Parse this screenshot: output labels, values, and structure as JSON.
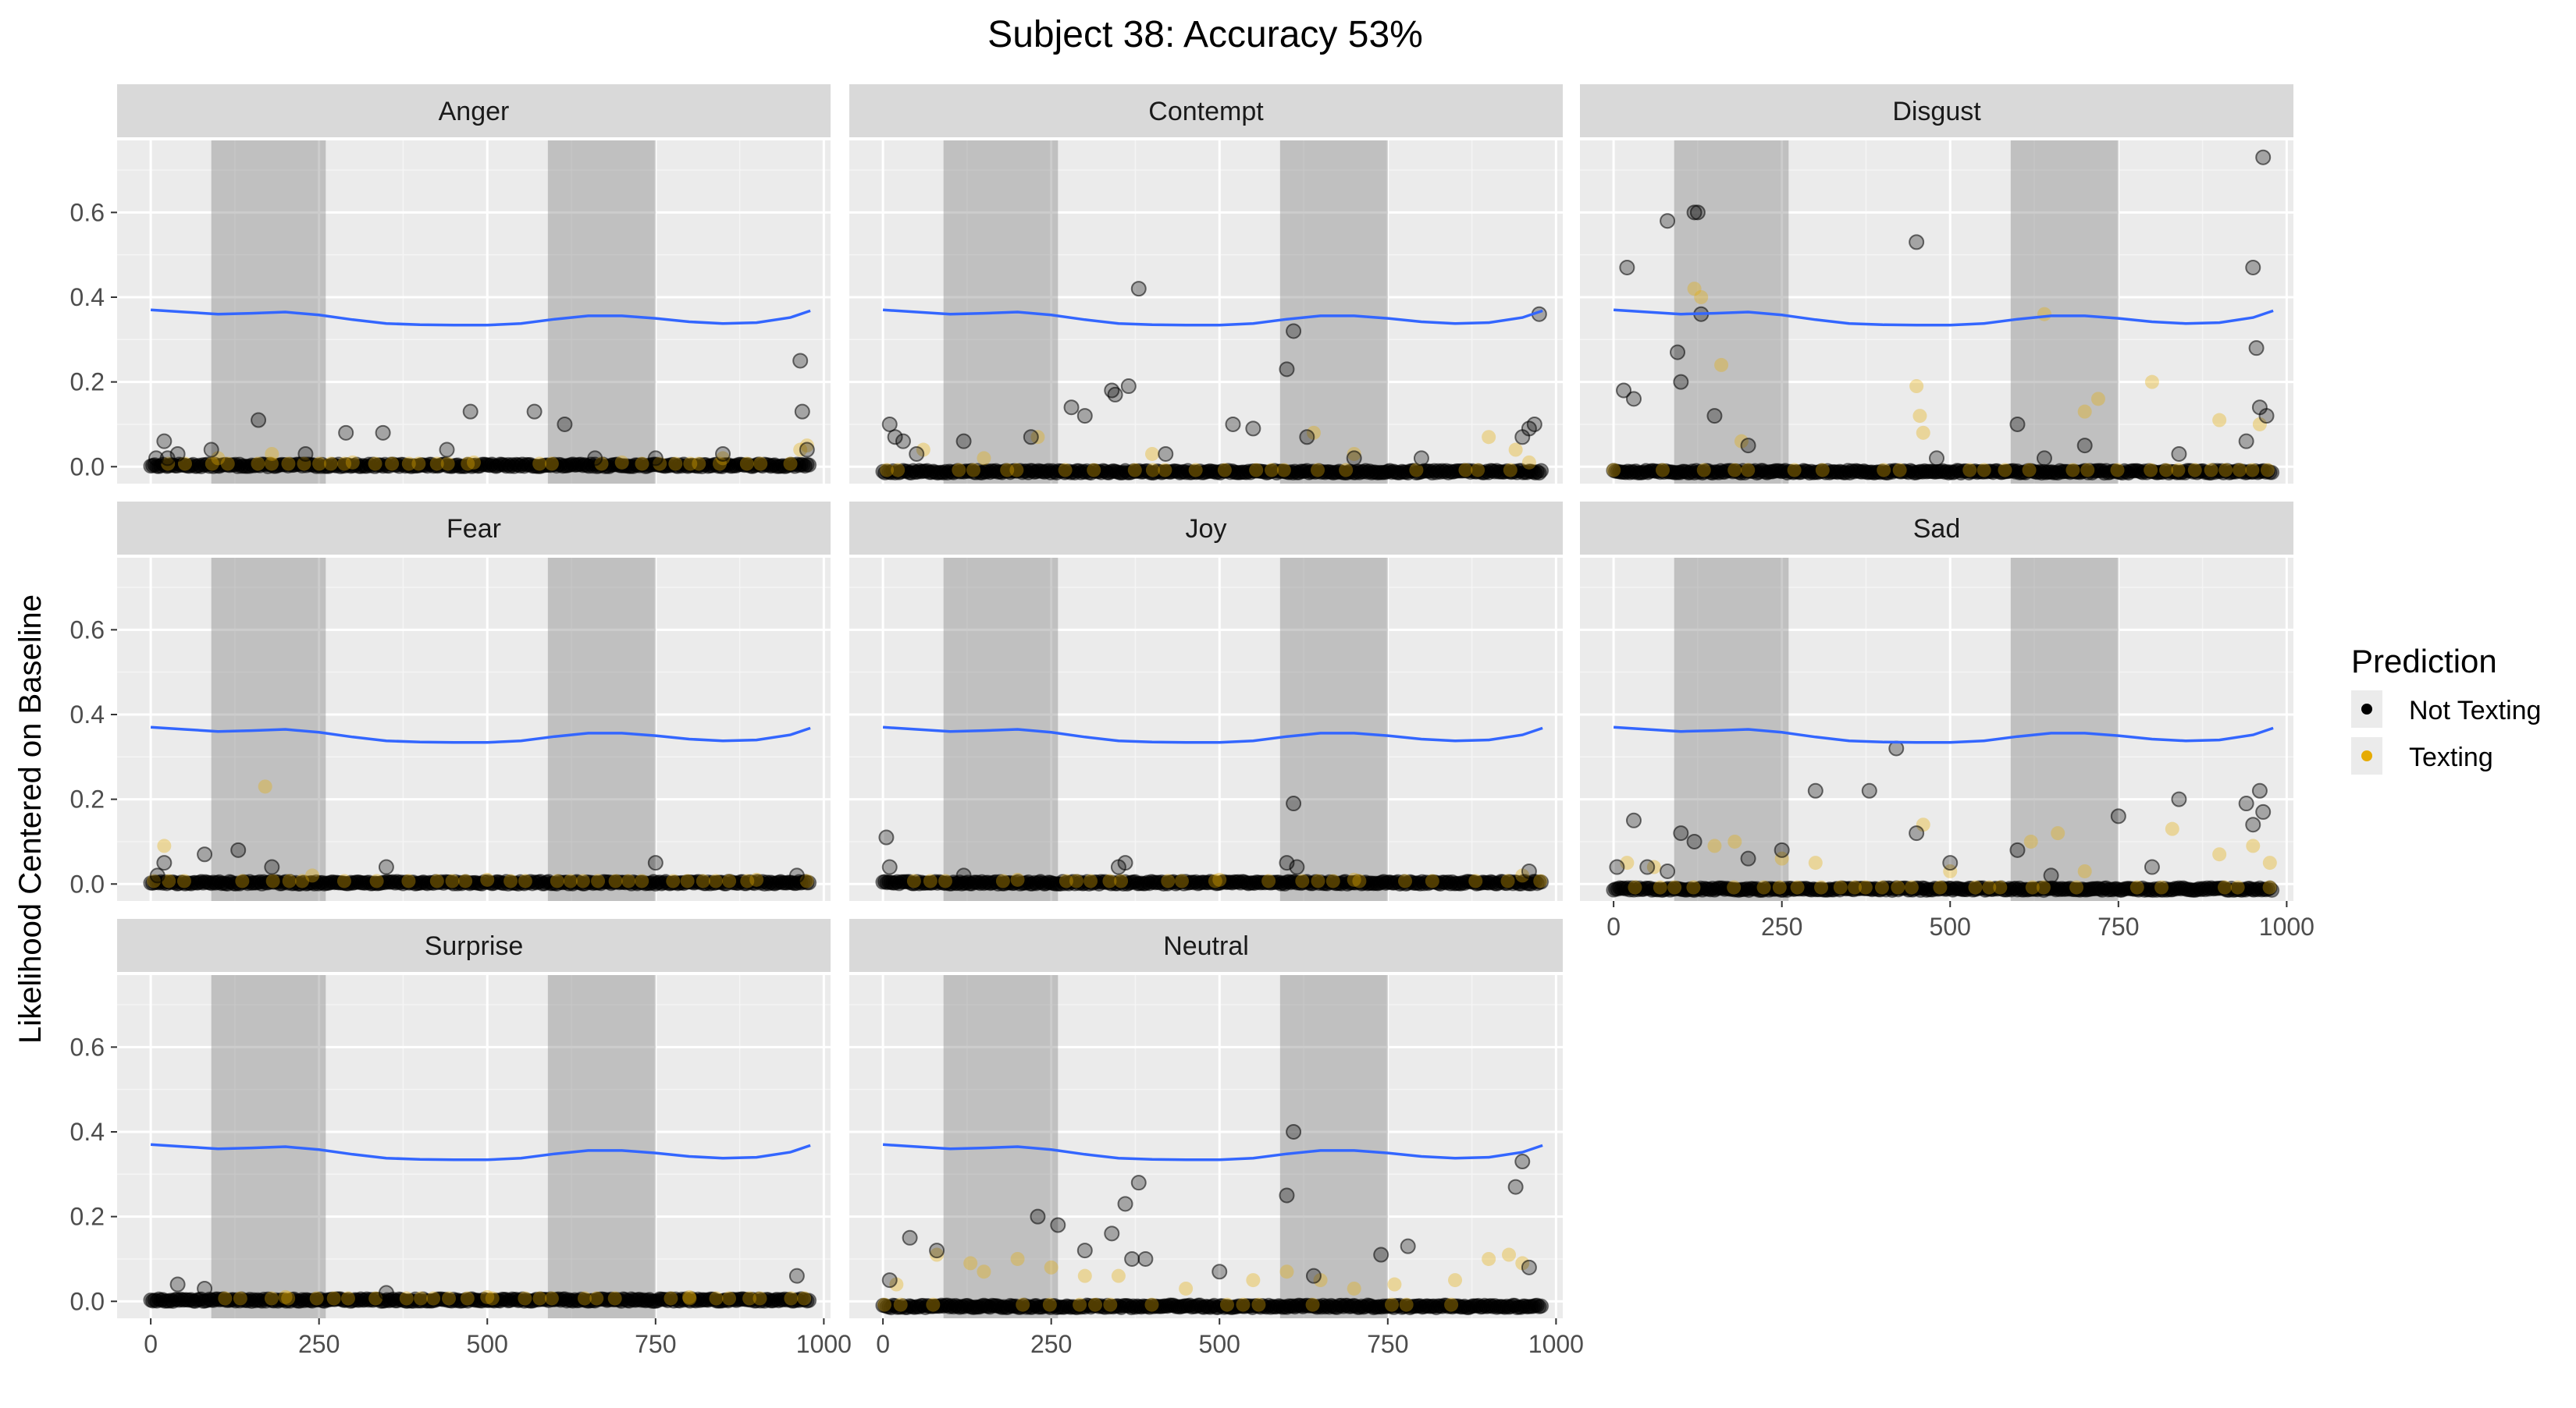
{
  "chart_data": {
    "type": "scatter",
    "title": "Subject 38: Accuracy 53%",
    "ylabel": "Likelihood Centered on Baseline",
    "xlabel": "",
    "xlim": [
      -50,
      1010
    ],
    "ylim": [
      -0.04,
      0.77
    ],
    "x_ticks": [
      0,
      250,
      500,
      750,
      1000
    ],
    "y_ticks": [
      0.0,
      0.2,
      0.4,
      0.6
    ],
    "y_tick_labels": [
      "0.0",
      "0.2",
      "0.4",
      "0.6"
    ],
    "shaded_intervals": [
      [
        90,
        260
      ],
      [
        590,
        750
      ]
    ],
    "grid": true,
    "legend": {
      "title": "Prediction",
      "placement": "right",
      "entries": [
        {
          "label": "Not Texting",
          "color": "#000000"
        },
        {
          "label": "Texting",
          "color": "#E6AB02"
        }
      ]
    },
    "trend_line": {
      "color": "#3366FF",
      "x": [
        0,
        50,
        100,
        150,
        200,
        250,
        300,
        350,
        400,
        450,
        500,
        550,
        600,
        650,
        700,
        750,
        800,
        850,
        900,
        950,
        980
      ],
      "y": [
        0.37,
        0.365,
        0.36,
        0.362,
        0.365,
        0.358,
        0.347,
        0.338,
        0.335,
        0.334,
        0.334,
        0.338,
        0.348,
        0.356,
        0.356,
        0.35,
        0.342,
        0.338,
        0.34,
        0.352,
        0.368
      ]
    },
    "panels": [
      {
        "label": "Anger",
        "not_texting": [
          [
            8,
            0.02
          ],
          [
            20,
            0.06
          ],
          [
            25,
            0.02
          ],
          [
            40,
            0.03
          ],
          [
            90,
            0.04
          ],
          [
            160,
            0.11
          ],
          [
            230,
            0.03
          ],
          [
            290,
            0.08
          ],
          [
            345,
            0.08
          ],
          [
            440,
            0.04
          ],
          [
            475,
            0.13
          ],
          [
            570,
            0.13
          ],
          [
            615,
            0.1
          ],
          [
            660,
            0.02
          ],
          [
            750,
            0.02
          ],
          [
            850,
            0.03
          ],
          [
            965,
            0.25
          ],
          [
            968,
            0.13
          ],
          [
            975,
            0.04
          ]
        ],
        "texting": [
          [
            100,
            0.02
          ],
          [
            180,
            0.03
          ],
          [
            300,
            0.01
          ],
          [
            480,
            0.01
          ],
          [
            700,
            0.01
          ],
          [
            850,
            0.02
          ],
          [
            965,
            0.04
          ],
          [
            975,
            0.05
          ]
        ]
      },
      {
        "label": "Contempt",
        "not_texting": [
          [
            10,
            0.1
          ],
          [
            18,
            0.07
          ],
          [
            30,
            0.06
          ],
          [
            50,
            0.03
          ],
          [
            120,
            0.06
          ],
          [
            220,
            0.07
          ],
          [
            280,
            0.14
          ],
          [
            300,
            0.12
          ],
          [
            340,
            0.18
          ],
          [
            345,
            0.17
          ],
          [
            365,
            0.19
          ],
          [
            380,
            0.42
          ],
          [
            420,
            0.03
          ],
          [
            520,
            0.1
          ],
          [
            550,
            0.09
          ],
          [
            600,
            0.23
          ],
          [
            610,
            0.32
          ],
          [
            630,
            0.07
          ],
          [
            700,
            0.02
          ],
          [
            800,
            0.02
          ],
          [
            950,
            0.07
          ],
          [
            960,
            0.09
          ],
          [
            968,
            0.1
          ],
          [
            975,
            0.36
          ]
        ],
        "texting": [
          [
            60,
            0.04
          ],
          [
            150,
            0.02
          ],
          [
            230,
            0.07
          ],
          [
            400,
            0.03
          ],
          [
            640,
            0.08
          ],
          [
            700,
            0.03
          ],
          [
            900,
            0.07
          ],
          [
            940,
            0.04
          ],
          [
            960,
            0.01
          ]
        ]
      },
      {
        "label": "Disgust",
        "not_texting": [
          [
            15,
            0.18
          ],
          [
            20,
            0.47
          ],
          [
            30,
            0.16
          ],
          [
            80,
            0.58
          ],
          [
            95,
            0.27
          ],
          [
            100,
            0.2
          ],
          [
            120,
            0.6
          ],
          [
            125,
            0.6
          ],
          [
            130,
            0.36
          ],
          [
            150,
            0.12
          ],
          [
            200,
            0.05
          ],
          [
            450,
            0.53
          ],
          [
            480,
            0.02
          ],
          [
            600,
            0.1
          ],
          [
            640,
            0.02
          ],
          [
            700,
            0.05
          ],
          [
            840,
            0.03
          ],
          [
            940,
            0.06
          ],
          [
            950,
            0.47
          ],
          [
            955,
            0.28
          ],
          [
            960,
            0.14
          ],
          [
            965,
            0.73
          ],
          [
            970,
            0.12
          ]
        ],
        "texting": [
          [
            120,
            0.42
          ],
          [
            130,
            0.4
          ],
          [
            160,
            0.24
          ],
          [
            190,
            0.06
          ],
          [
            450,
            0.19
          ],
          [
            455,
            0.12
          ],
          [
            460,
            0.08
          ],
          [
            640,
            0.36
          ],
          [
            700,
            0.13
          ],
          [
            720,
            0.16
          ],
          [
            800,
            0.2
          ],
          [
            900,
            0.11
          ],
          [
            960,
            0.1
          ]
        ]
      },
      {
        "label": "Fear",
        "not_texting": [
          [
            10,
            0.02
          ],
          [
            20,
            0.05
          ],
          [
            80,
            0.07
          ],
          [
            130,
            0.08
          ],
          [
            180,
            0.04
          ],
          [
            350,
            0.04
          ],
          [
            750,
            0.05
          ],
          [
            960,
            0.02
          ]
        ],
        "texting": [
          [
            20,
            0.09
          ],
          [
            170,
            0.23
          ],
          [
            240,
            0.02
          ],
          [
            500,
            0.01
          ],
          [
            900,
            0.01
          ]
        ]
      },
      {
        "label": "Joy",
        "not_texting": [
          [
            5,
            0.11
          ],
          [
            10,
            0.04
          ],
          [
            120,
            0.02
          ],
          [
            350,
            0.04
          ],
          [
            360,
            0.05
          ],
          [
            600,
            0.05
          ],
          [
            610,
            0.19
          ],
          [
            615,
            0.04
          ],
          [
            960,
            0.03
          ]
        ],
        "texting": [
          [
            200,
            0.01
          ],
          [
            500,
            0.01
          ],
          [
            700,
            0.01
          ],
          [
            950,
            0.02
          ]
        ]
      },
      {
        "label": "Sad",
        "not_texting": [
          [
            5,
            0.04
          ],
          [
            30,
            0.15
          ],
          [
            50,
            0.04
          ],
          [
            80,
            0.03
          ],
          [
            100,
            0.12
          ],
          [
            120,
            0.1
          ],
          [
            200,
            0.06
          ],
          [
            250,
            0.08
          ],
          [
            300,
            0.22
          ],
          [
            380,
            0.22
          ],
          [
            420,
            0.32
          ],
          [
            450,
            0.12
          ],
          [
            500,
            0.05
          ],
          [
            600,
            0.08
          ],
          [
            650,
            0.02
          ],
          [
            750,
            0.16
          ],
          [
            800,
            0.04
          ],
          [
            840,
            0.2
          ],
          [
            940,
            0.19
          ],
          [
            950,
            0.14
          ],
          [
            960,
            0.22
          ],
          [
            965,
            0.17
          ]
        ],
        "texting": [
          [
            20,
            0.05
          ],
          [
            60,
            0.04
          ],
          [
            150,
            0.09
          ],
          [
            180,
            0.1
          ],
          [
            250,
            0.06
          ],
          [
            300,
            0.05
          ],
          [
            460,
            0.14
          ],
          [
            500,
            0.03
          ],
          [
            620,
            0.1
          ],
          [
            660,
            0.12
          ],
          [
            700,
            0.03
          ],
          [
            830,
            0.13
          ],
          [
            900,
            0.07
          ],
          [
            950,
            0.09
          ],
          [
            975,
            0.05
          ]
        ]
      },
      {
        "label": "Surprise",
        "not_texting": [
          [
            40,
            0.04
          ],
          [
            80,
            0.03
          ],
          [
            350,
            0.02
          ],
          [
            960,
            0.06
          ]
        ],
        "texting": [
          [
            200,
            0.01
          ],
          [
            500,
            0.01
          ],
          [
            800,
            0.01
          ]
        ]
      },
      {
        "label": "Neutral",
        "not_texting": [
          [
            10,
            0.05
          ],
          [
            40,
            0.15
          ],
          [
            80,
            0.12
          ],
          [
            230,
            0.2
          ],
          [
            260,
            0.18
          ],
          [
            300,
            0.12
          ],
          [
            340,
            0.16
          ],
          [
            360,
            0.23
          ],
          [
            370,
            0.1
          ],
          [
            380,
            0.28
          ],
          [
            390,
            0.1
          ],
          [
            500,
            0.07
          ],
          [
            600,
            0.25
          ],
          [
            610,
            0.4
          ],
          [
            640,
            0.06
          ],
          [
            740,
            0.11
          ],
          [
            780,
            0.13
          ],
          [
            940,
            0.27
          ],
          [
            950,
            0.33
          ],
          [
            960,
            0.08
          ]
        ],
        "texting": [
          [
            20,
            0.04
          ],
          [
            80,
            0.11
          ],
          [
            130,
            0.09
          ],
          [
            150,
            0.07
          ],
          [
            200,
            0.1
          ],
          [
            250,
            0.08
          ],
          [
            300,
            0.06
          ],
          [
            350,
            0.06
          ],
          [
            450,
            0.03
          ],
          [
            550,
            0.05
          ],
          [
            600,
            0.07
          ],
          [
            650,
            0.05
          ],
          [
            700,
            0.03
          ],
          [
            760,
            0.04
          ],
          [
            850,
            0.05
          ],
          [
            900,
            0.1
          ],
          [
            930,
            0.11
          ],
          [
            950,
            0.09
          ]
        ]
      }
    ]
  }
}
